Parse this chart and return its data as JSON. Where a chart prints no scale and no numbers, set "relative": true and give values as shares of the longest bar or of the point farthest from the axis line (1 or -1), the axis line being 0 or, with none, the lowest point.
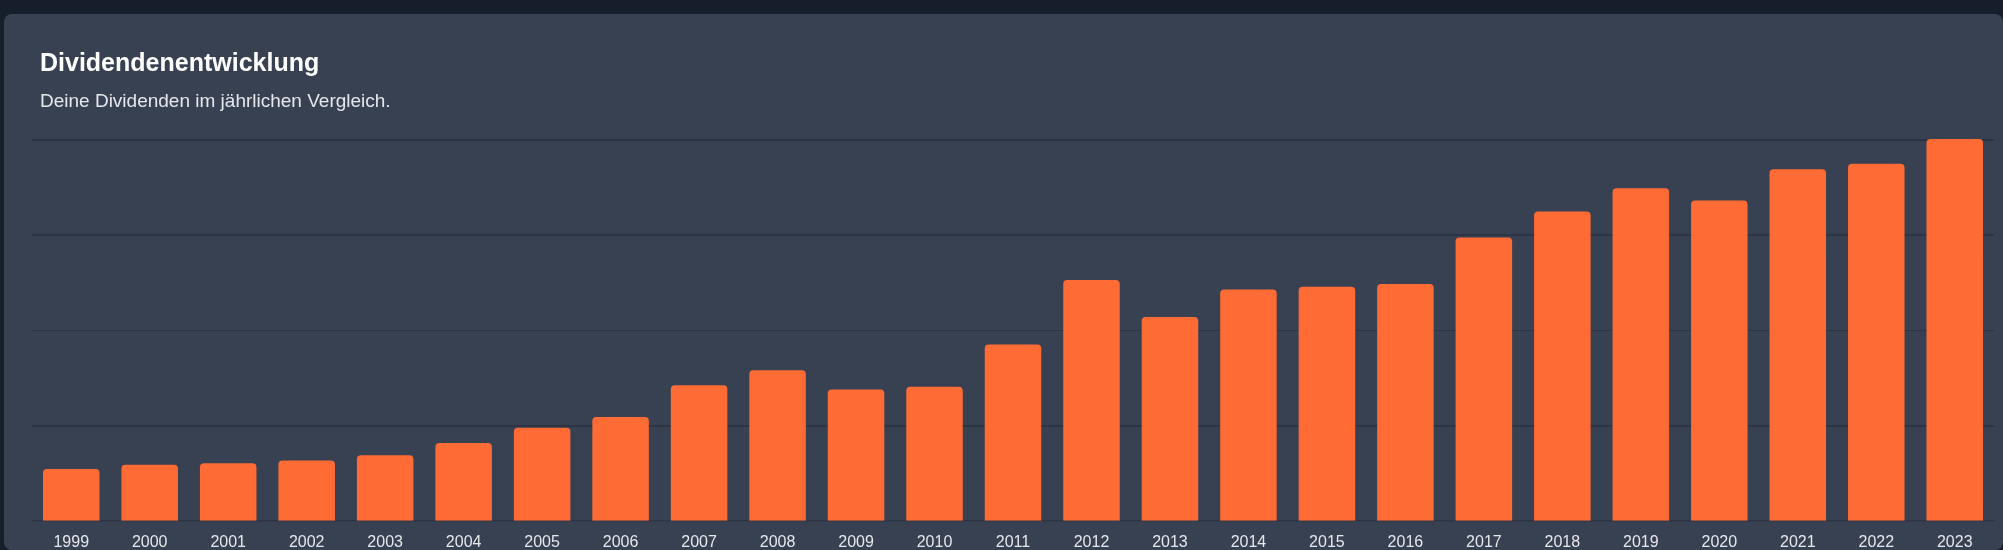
{
  "chart_data": {
    "type": "bar",
    "title": "Dividendenentwicklung",
    "subtitle": "Deine Dividenden im jährlichen Vergleich.",
    "relative": true,
    "legend": false,
    "categories": [
      "1999",
      "2000",
      "2001",
      "2002",
      "2003",
      "2004",
      "2005",
      "2006",
      "2007",
      "2008",
      "2009",
      "2010",
      "2011",
      "2012",
      "2013",
      "2014",
      "2015",
      "2016",
      "2017",
      "2018",
      "2019",
      "2020",
      "2021",
      "2022",
      "2023"
    ],
    "series": [
      {
        "color": "#ff6b35",
        "values": [
          0.136,
          0.147,
          0.151,
          0.158,
          0.172,
          0.204,
          0.244,
          0.272,
          0.355,
          0.394,
          0.344,
          0.351,
          0.462,
          0.631,
          0.534,
          0.606,
          0.613,
          0.62,
          0.742,
          0.81,
          0.871,
          0.839,
          0.921,
          0.935,
          1
        ]
      }
    ]
  }
}
